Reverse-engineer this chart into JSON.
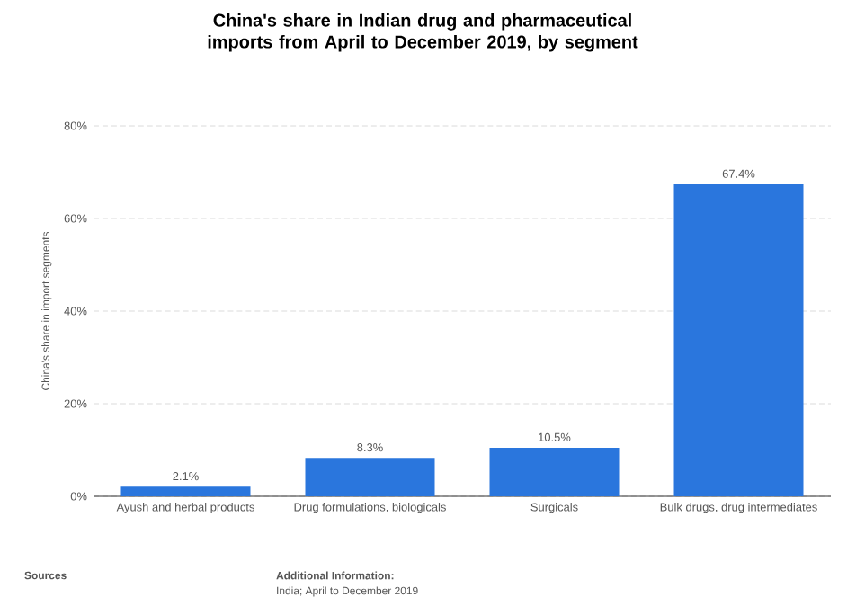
{
  "chart_data": {
    "type": "bar",
    "title": "China's share in Indian drug and pharmaceutical imports from April to December 2019, by segment",
    "ylabel": "China's share in import segments",
    "categories": [
      "Ayush and herbal products",
      "Drug formulations, biologicals",
      "Surgicals",
      "Bulk drugs, drug intermediates"
    ],
    "values": [
      2.1,
      8.3,
      10.5,
      67.4
    ],
    "value_labels": [
      "2.1%",
      "8.3%",
      "10.5%",
      "67.4%"
    ],
    "color": "#2a76dd",
    "ylim": [
      0,
      80
    ],
    "yticks": [
      {
        "value": 0,
        "label": "0%"
      },
      {
        "value": 20,
        "label": "20%"
      },
      {
        "value": 40,
        "label": "40%"
      },
      {
        "value": 60,
        "label": "60%"
      },
      {
        "value": 80,
        "label": "80%"
      }
    ],
    "grid": "y",
    "annotations": [
      "Sources",
      "Additional Information:",
      "India; April to December 2019"
    ]
  }
}
